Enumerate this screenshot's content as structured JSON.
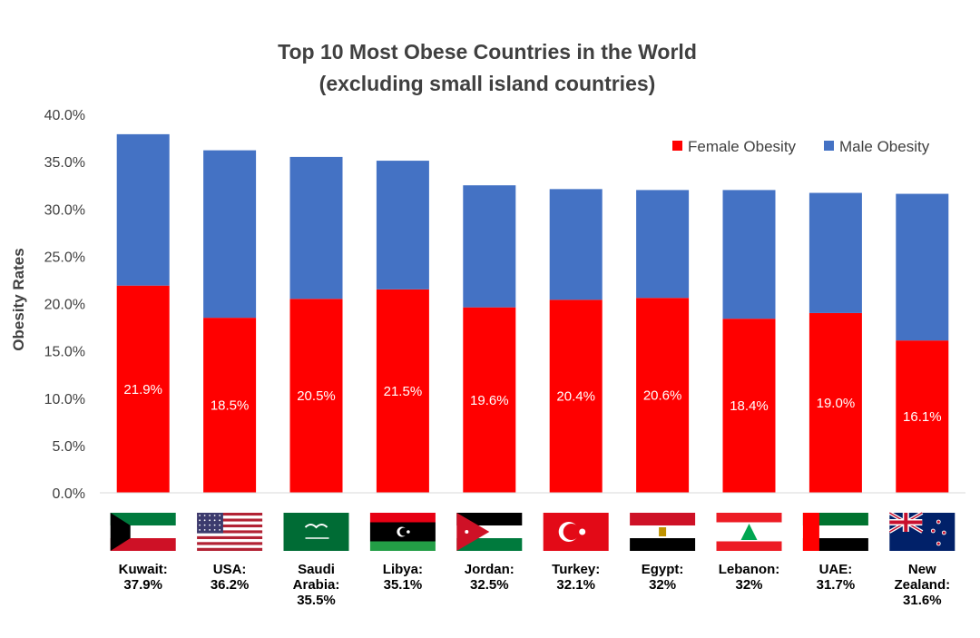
{
  "chart_data": {
    "type": "bar",
    "stacked": true,
    "title_lines": [
      "Top 10 Most Obese Countries in the World",
      "(excluding small island countries)"
    ],
    "ylabel": "Obesity Rates",
    "ylim": [
      0,
      40
    ],
    "y_ticks": [
      "0.0%",
      "5.0%",
      "10.0%",
      "15.0%",
      "20.0%",
      "25.0%",
      "30.0%",
      "35.0%",
      "40.0%"
    ],
    "categories": [
      "Kuwait",
      "USA",
      "Saudi Arabia",
      "Libya",
      "Jordan",
      "Turkey",
      "Egypt",
      "Lebanon",
      "UAE",
      "New Zealand"
    ],
    "category_labels": [
      [
        "Kuwait:",
        "37.9%"
      ],
      [
        "USA:",
        "36.2%"
      ],
      [
        "Saudi",
        "Arabia:",
        "35.5%"
      ],
      [
        "Libya:",
        "35.1%"
      ],
      [
        "Jordan:",
        "32.5%"
      ],
      [
        "Turkey:",
        "32.1%"
      ],
      [
        "Egypt:",
        "32%"
      ],
      [
        "Lebanon:",
        "32%"
      ],
      [
        "UAE:",
        "31.7%"
      ],
      [
        "New",
        "Zealand:",
        "31.6%"
      ]
    ],
    "series": [
      {
        "name": "Female Obesity",
        "color": "#ff0000",
        "values": [
          21.9,
          18.5,
          20.5,
          21.5,
          19.6,
          20.4,
          20.6,
          18.4,
          19.0,
          16.1
        ],
        "labels": [
          "21.9%",
          "18.5%",
          "20.5%",
          "21.5%",
          "19.6%",
          "20.4%",
          "20.6%",
          "18.4%",
          "19.0%",
          "16.1%"
        ]
      },
      {
        "name": "Male Obesity",
        "color": "#4472c4",
        "values": [
          16.0,
          17.7,
          15.0,
          13.6,
          12.9,
          11.7,
          11.4,
          13.6,
          12.7,
          15.5
        ]
      }
    ],
    "totals": [
      37.9,
      36.2,
      35.5,
      35.1,
      32.5,
      32.1,
      32.0,
      32.0,
      31.7,
      31.6
    ],
    "legend_position": "top-right",
    "grid": false,
    "flags": [
      "kuwait-flag",
      "usa-flag",
      "saudi-arabia-flag",
      "libya-flag",
      "jordan-flag",
      "turkey-flag",
      "egypt-flag",
      "lebanon-flag",
      "uae-flag",
      "new-zealand-flag"
    ]
  }
}
